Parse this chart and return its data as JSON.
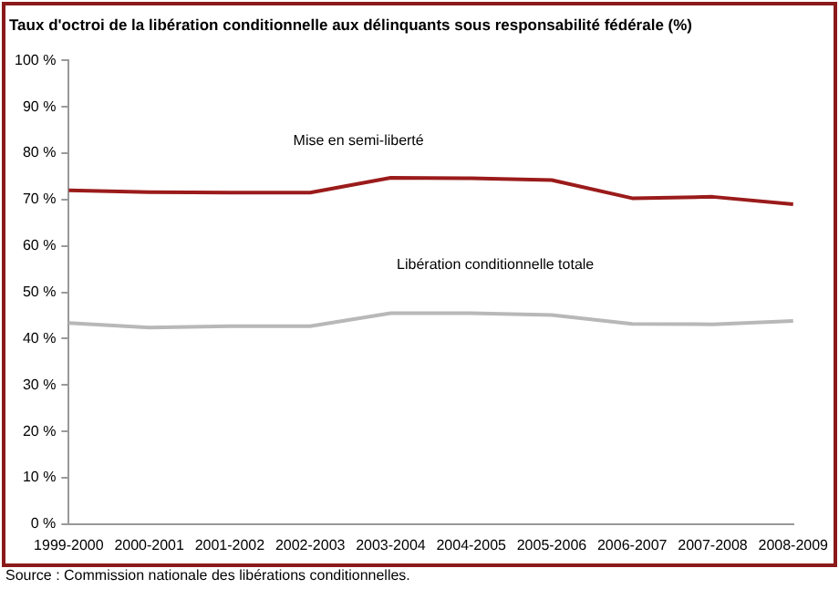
{
  "chart_data": {
    "type": "line",
    "title": "Taux d'octroi de la libération conditionnelle aux délinquants sous responsabilité fédérale (%)",
    "categories": [
      "1999-2000",
      "2000-2001",
      "2001-2002",
      "2002-2003",
      "2003-2004",
      "2004-2005",
      "2005-2006",
      "2006-2007",
      "2007-2008",
      "2008-2009"
    ],
    "series": [
      {
        "name": "Mise en semi-liberté",
        "color": "#9b1b1b",
        "values": [
          72,
          71.6,
          71.5,
          71.5,
          74.7,
          74.6,
          74.2,
          70.3,
          70.6,
          69
        ]
      },
      {
        "name": "Libération conditionnelle totale",
        "color": "#b8b8b8",
        "values": [
          43.4,
          42.4,
          42.7,
          42.7,
          45.5,
          45.5,
          45.1,
          43.2,
          43.1,
          43.8
        ]
      }
    ],
    "ylim": [
      0,
      100
    ],
    "yticks": [
      {
        "value": 0,
        "label": "0 %"
      },
      {
        "value": 10,
        "label": "10 %"
      },
      {
        "value": 20,
        "label": "20 %"
      },
      {
        "value": 30,
        "label": "30 %"
      },
      {
        "value": 40,
        "label": "40 %"
      },
      {
        "value": 50,
        "label": "50 %"
      },
      {
        "value": 60,
        "label": "60 %"
      },
      {
        "value": 70,
        "label": "70 %"
      },
      {
        "value": 80,
        "label": "80 %"
      },
      {
        "value": 90,
        "label": "90 %"
      },
      {
        "value": 100,
        "label": "100 %"
      }
    ],
    "grid": false,
    "legend": false,
    "marker": "none",
    "line_style": "solid",
    "annotations": [
      "Source : Commission nationale des libérations conditionnelles."
    ]
  }
}
